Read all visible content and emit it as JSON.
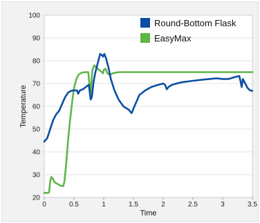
{
  "chart_data": {
    "type": "line",
    "xlabel": "Time",
    "ylabel": "Temperature",
    "xlim": [
      0,
      3.5
    ],
    "ylim": [
      20,
      100
    ],
    "xticks": [
      "0",
      "0.5",
      "1",
      "1.5",
      "2",
      "2.5",
      "3",
      "3.5"
    ],
    "yticks": [
      "20",
      "30",
      "40",
      "50",
      "60",
      "70",
      "80",
      "90",
      "100"
    ],
    "grid": true,
    "legend_position": "top-right",
    "series": [
      {
        "name": "Round-Bottom Flask",
        "color": "#0b4ea2",
        "points": [
          [
            0.0,
            44.5
          ],
          [
            0.05,
            46
          ],
          [
            0.1,
            50
          ],
          [
            0.15,
            54
          ],
          [
            0.2,
            56.5
          ],
          [
            0.25,
            58
          ],
          [
            0.3,
            61
          ],
          [
            0.35,
            64
          ],
          [
            0.4,
            66
          ],
          [
            0.45,
            66.8
          ],
          [
            0.5,
            67
          ],
          [
            0.55,
            67
          ],
          [
            0.57,
            65.5
          ],
          [
            0.6,
            67
          ],
          [
            0.65,
            67.5
          ],
          [
            0.7,
            68.5
          ],
          [
            0.75,
            69.5
          ],
          [
            0.78,
            63
          ],
          [
            0.8,
            64
          ],
          [
            0.83,
            71
          ],
          [
            0.86,
            75
          ],
          [
            0.9,
            79
          ],
          [
            0.94,
            83
          ],
          [
            0.97,
            82.5
          ],
          [
            0.99,
            81.8
          ],
          [
            1.01,
            83
          ],
          [
            1.04,
            81
          ],
          [
            1.08,
            77
          ],
          [
            1.12,
            72
          ],
          [
            1.18,
            67
          ],
          [
            1.25,
            63
          ],
          [
            1.33,
            60
          ],
          [
            1.42,
            58.5
          ],
          [
            1.47,
            57
          ],
          [
            1.5,
            59
          ],
          [
            1.55,
            62
          ],
          [
            1.6,
            65
          ],
          [
            1.7,
            67
          ],
          [
            1.8,
            68.5
          ],
          [
            1.9,
            69.3
          ],
          [
            2.0,
            70
          ],
          [
            2.03,
            69.5
          ],
          [
            2.06,
            67.5
          ],
          [
            2.09,
            68.5
          ],
          [
            2.15,
            69.5
          ],
          [
            2.3,
            70.5
          ],
          [
            2.5,
            71.2
          ],
          [
            2.7,
            71.8
          ],
          [
            2.9,
            72.3
          ],
          [
            3.0,
            72
          ],
          [
            3.1,
            72
          ],
          [
            3.2,
            72.8
          ],
          [
            3.28,
            73.3
          ],
          [
            3.3,
            71
          ],
          [
            3.32,
            68.5
          ],
          [
            3.34,
            72
          ],
          [
            3.38,
            70
          ],
          [
            3.42,
            68
          ],
          [
            3.46,
            67
          ],
          [
            3.5,
            66.8
          ]
        ]
      },
      {
        "name": "EasyMax",
        "color": "#5fb548",
        "points": [
          [
            0.0,
            22
          ],
          [
            0.05,
            22
          ],
          [
            0.08,
            22.2
          ],
          [
            0.1,
            27
          ],
          [
            0.12,
            29
          ],
          [
            0.15,
            28
          ],
          [
            0.18,
            26.5
          ],
          [
            0.22,
            26
          ],
          [
            0.27,
            25.2
          ],
          [
            0.32,
            25
          ],
          [
            0.34,
            27
          ],
          [
            0.37,
            35
          ],
          [
            0.4,
            45
          ],
          [
            0.43,
            53
          ],
          [
            0.47,
            62
          ],
          [
            0.5,
            68
          ],
          [
            0.54,
            72
          ],
          [
            0.58,
            74
          ],
          [
            0.63,
            74.8
          ],
          [
            0.7,
            75
          ],
          [
            0.74,
            75
          ],
          [
            0.76,
            70
          ],
          [
            0.78,
            66
          ],
          [
            0.81,
            76
          ],
          [
            0.84,
            78
          ],
          [
            0.88,
            77
          ],
          [
            0.93,
            75.8
          ],
          [
            0.97,
            75
          ],
          [
            0.99,
            74.5
          ],
          [
            1.0,
            76
          ],
          [
            1.03,
            76.5
          ],
          [
            1.06,
            74.5
          ],
          [
            1.1,
            73.8
          ],
          [
            1.15,
            74.5
          ],
          [
            1.25,
            75
          ],
          [
            1.4,
            75
          ],
          [
            1.6,
            75
          ],
          [
            1.8,
            75
          ],
          [
            2.1,
            75
          ],
          [
            2.5,
            75
          ],
          [
            3.0,
            75
          ],
          [
            3.5,
            75
          ]
        ]
      }
    ]
  }
}
